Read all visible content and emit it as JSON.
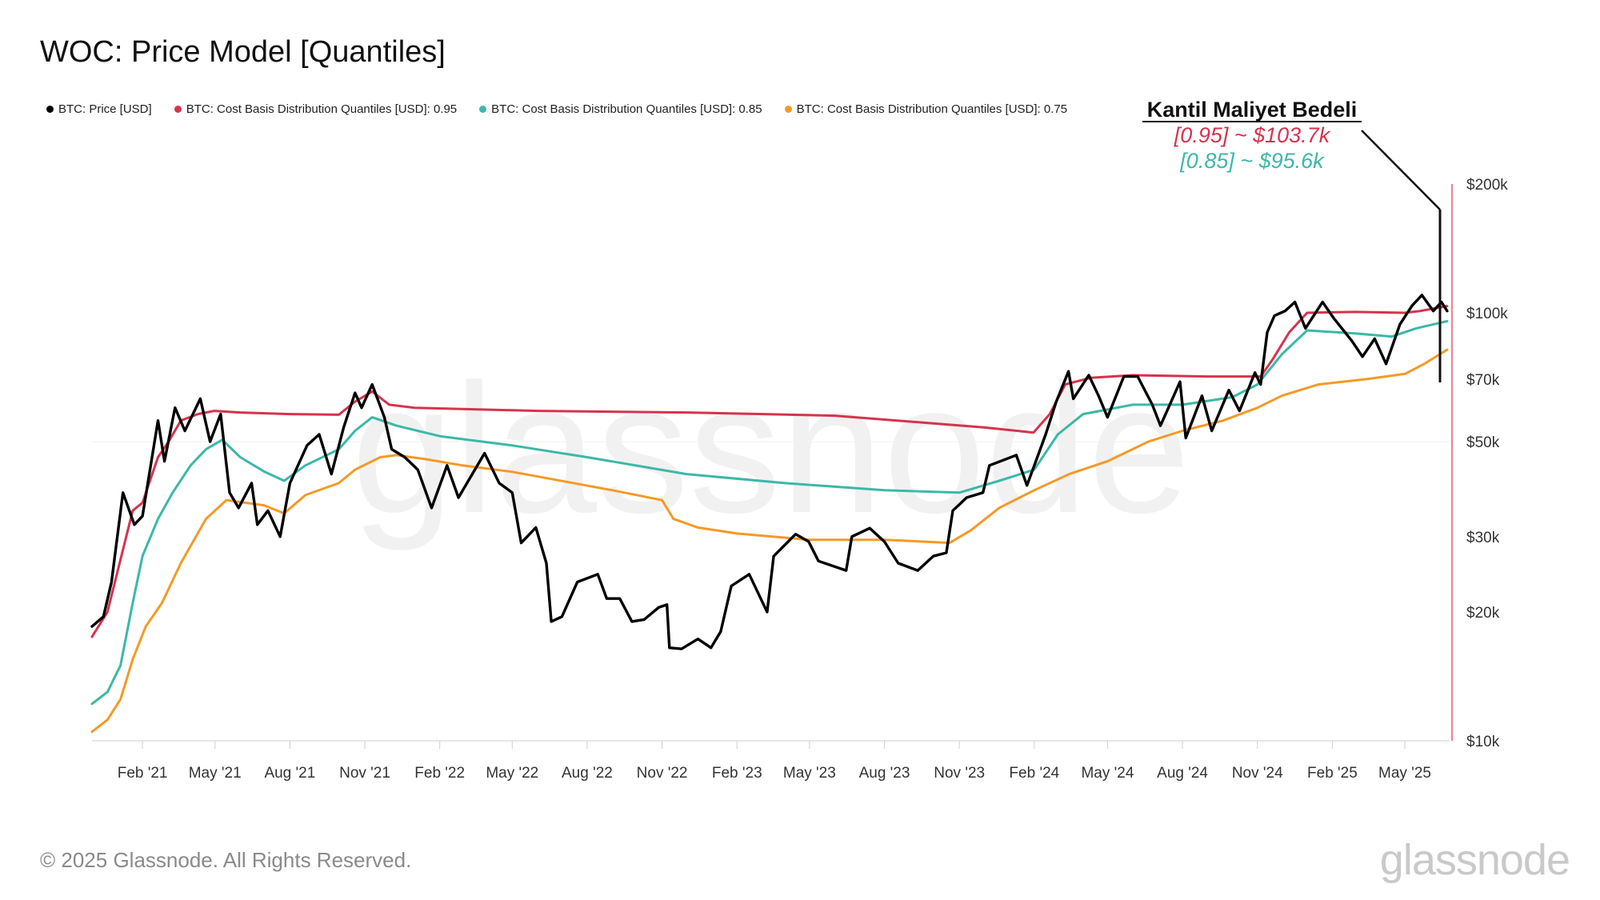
{
  "title": "WOC: Price Model [Quantiles]",
  "legend": [
    {
      "label": "BTC: Price [USD]",
      "color": "#000000"
    },
    {
      "label": "BTC: Cost Basis Distribution Quantiles [USD]: 0.95",
      "color": "#d6334d"
    },
    {
      "label": "BTC: Cost Basis Distribution Quantiles [USD]: 0.85",
      "color": "#3cb8a8"
    },
    {
      "label": "BTC: Cost Basis Distribution Quantiles [USD]: 0.75",
      "color": "#f39a26"
    }
  ],
  "annotation": {
    "heading": "Kantil Maliyet Bedeli",
    "line1": "[0.95] ~ $103.7k",
    "line2": "[0.85] ~ $95.6k",
    "line1_color": "#d6334d",
    "line2_color": "#3cb8a8"
  },
  "footer": "© 2025 Glassnode. All Rights Reserved.",
  "watermark": "glassnode",
  "chart_data": {
    "type": "line",
    "y_scale": "log",
    "ylim": [
      10000,
      200000
    ],
    "xlim": [
      "2020-12-01",
      "2025-06-25"
    ],
    "y_ticks": [
      {
        "value": 10000,
        "label": "$10k"
      },
      {
        "value": 20000,
        "label": "$20k"
      },
      {
        "value": 30000,
        "label": "$30k"
      },
      {
        "value": 50000,
        "label": "$50k"
      },
      {
        "value": 70000,
        "label": "$70k"
      },
      {
        "value": 100000,
        "label": "$100k"
      },
      {
        "value": 200000,
        "label": "$200k"
      }
    ],
    "x_ticks": [
      {
        "date": "2021-02-01",
        "label": "Feb '21"
      },
      {
        "date": "2021-05-01",
        "label": "May '21"
      },
      {
        "date": "2021-08-01",
        "label": "Aug '21"
      },
      {
        "date": "2021-11-01",
        "label": "Nov '21"
      },
      {
        "date": "2022-02-01",
        "label": "Feb '22"
      },
      {
        "date": "2022-05-01",
        "label": "May '22"
      },
      {
        "date": "2022-08-01",
        "label": "Aug '22"
      },
      {
        "date": "2022-11-01",
        "label": "Nov '22"
      },
      {
        "date": "2023-02-01",
        "label": "Feb '23"
      },
      {
        "date": "2023-05-01",
        "label": "May '23"
      },
      {
        "date": "2023-08-01",
        "label": "Aug '23"
      },
      {
        "date": "2023-11-01",
        "label": "Nov '23"
      },
      {
        "date": "2024-02-01",
        "label": "Feb '24"
      },
      {
        "date": "2024-05-01",
        "label": "May '24"
      },
      {
        "date": "2024-08-01",
        "label": "Aug '24"
      },
      {
        "date": "2024-11-01",
        "label": "Nov '24"
      },
      {
        "date": "2025-02-01",
        "label": "Feb '25"
      },
      {
        "date": "2025-05-01",
        "label": "May '25"
      }
    ],
    "series": [
      {
        "name": "BTC: Price [USD]",
        "color": "#000000",
        "points": [
          [
            "2020-12-01",
            18500
          ],
          [
            "2020-12-15",
            19500
          ],
          [
            "2020-12-25",
            23500
          ],
          [
            "2021-01-08",
            38000
          ],
          [
            "2021-01-22",
            32000
          ],
          [
            "2021-02-01",
            33500
          ],
          [
            "2021-02-20",
            56000
          ],
          [
            "2021-02-28",
            45000
          ],
          [
            "2021-03-13",
            60000
          ],
          [
            "2021-03-25",
            53000
          ],
          [
            "2021-04-13",
            63000
          ],
          [
            "2021-04-25",
            50000
          ],
          [
            "2021-05-08",
            58000
          ],
          [
            "2021-05-19",
            38000
          ],
          [
            "2021-05-30",
            35000
          ],
          [
            "2021-06-15",
            40000
          ],
          [
            "2021-06-22",
            32000
          ],
          [
            "2021-07-05",
            34500
          ],
          [
            "2021-07-20",
            30000
          ],
          [
            "2021-08-01",
            40000
          ],
          [
            "2021-08-22",
            49000
          ],
          [
            "2021-09-06",
            52000
          ],
          [
            "2021-09-21",
            42000
          ],
          [
            "2021-10-06",
            54000
          ],
          [
            "2021-10-20",
            65000
          ],
          [
            "2021-10-28",
            60000
          ],
          [
            "2021-11-10",
            68000
          ],
          [
            "2021-11-25",
            57000
          ],
          [
            "2021-12-04",
            48000
          ],
          [
            "2021-12-20",
            46000
          ],
          [
            "2022-01-05",
            43000
          ],
          [
            "2022-01-22",
            35000
          ],
          [
            "2022-02-10",
            44000
          ],
          [
            "2022-02-24",
            37000
          ],
          [
            "2022-03-28",
            47000
          ],
          [
            "2022-04-15",
            40000
          ],
          [
            "2022-05-01",
            38000
          ],
          [
            "2022-05-12",
            29000
          ],
          [
            "2022-05-30",
            31500
          ],
          [
            "2022-06-12",
            26000
          ],
          [
            "2022-06-18",
            19000
          ],
          [
            "2022-07-01",
            19500
          ],
          [
            "2022-07-20",
            23500
          ],
          [
            "2022-08-14",
            24500
          ],
          [
            "2022-08-25",
            21500
          ],
          [
            "2022-09-10",
            21500
          ],
          [
            "2022-09-25",
            19000
          ],
          [
            "2022-10-10",
            19200
          ],
          [
            "2022-10-28",
            20500
          ],
          [
            "2022-11-07",
            20800
          ],
          [
            "2022-11-10",
            16500
          ],
          [
            "2022-11-25",
            16400
          ],
          [
            "2022-12-15",
            17300
          ],
          [
            "2022-12-31",
            16500
          ],
          [
            "2023-01-12",
            18000
          ],
          [
            "2023-01-25",
            23000
          ],
          [
            "2023-02-16",
            24500
          ],
          [
            "2023-03-10",
            20000
          ],
          [
            "2023-03-18",
            27000
          ],
          [
            "2023-04-14",
            30400
          ],
          [
            "2023-04-30",
            29200
          ],
          [
            "2023-05-12",
            26300
          ],
          [
            "2023-06-15",
            25000
          ],
          [
            "2023-06-22",
            30000
          ],
          [
            "2023-07-14",
            31400
          ],
          [
            "2023-08-01",
            29200
          ],
          [
            "2023-08-18",
            26000
          ],
          [
            "2023-09-11",
            25000
          ],
          [
            "2023-09-30",
            27000
          ],
          [
            "2023-10-16",
            27500
          ],
          [
            "2023-10-24",
            34500
          ],
          [
            "2023-11-10",
            37000
          ],
          [
            "2023-11-30",
            38000
          ],
          [
            "2023-12-08",
            44000
          ],
          [
            "2024-01-10",
            46500
          ],
          [
            "2024-01-23",
            39500
          ],
          [
            "2024-02-15",
            52000
          ],
          [
            "2024-02-28",
            62000
          ],
          [
            "2024-03-14",
            73000
          ],
          [
            "2024-03-20",
            63000
          ],
          [
            "2024-04-08",
            71500
          ],
          [
            "2024-04-20",
            64000
          ],
          [
            "2024-05-01",
            57000
          ],
          [
            "2024-05-21",
            71000
          ],
          [
            "2024-06-07",
            71000
          ],
          [
            "2024-06-25",
            61000
          ],
          [
            "2024-07-05",
            54500
          ],
          [
            "2024-07-29",
            69000
          ],
          [
            "2024-08-05",
            51000
          ],
          [
            "2024-08-25",
            64000
          ],
          [
            "2024-09-06",
            53000
          ],
          [
            "2024-09-27",
            66000
          ],
          [
            "2024-10-10",
            59000
          ],
          [
            "2024-10-29",
            72500
          ],
          [
            "2024-11-05",
            68000
          ],
          [
            "2024-11-13",
            90000
          ],
          [
            "2024-11-22",
            98500
          ],
          [
            "2024-12-05",
            101000
          ],
          [
            "2024-12-17",
            106000
          ],
          [
            "2024-12-30",
            92000
          ],
          [
            "2025-01-20",
            106000
          ],
          [
            "2025-02-03",
            97000
          ],
          [
            "2025-02-25",
            86000
          ],
          [
            "2025-03-10",
            79000
          ],
          [
            "2025-03-25",
            87000
          ],
          [
            "2025-04-08",
            76000
          ],
          [
            "2025-04-25",
            94000
          ],
          [
            "2025-05-10",
            104000
          ],
          [
            "2025-05-22",
            110000
          ],
          [
            "2025-06-05",
            101000
          ],
          [
            "2025-06-15",
            106000
          ],
          [
            "2025-06-22",
            101000
          ]
        ]
      },
      {
        "name": "BTC: Cost Basis Distribution Quantiles [USD]: 0.95",
        "color": "#d6334d",
        "points": [
          [
            "2020-12-01",
            17500
          ],
          [
            "2020-12-20",
            20000
          ],
          [
            "2021-01-05",
            26500
          ],
          [
            "2021-01-20",
            34500
          ],
          [
            "2021-02-01",
            36000
          ],
          [
            "2021-02-20",
            46000
          ],
          [
            "2021-03-05",
            50000
          ],
          [
            "2021-03-20",
            56000
          ],
          [
            "2021-04-10",
            58000
          ],
          [
            "2021-04-30",
            59000
          ],
          [
            "2021-06-01",
            58500
          ],
          [
            "2021-08-01",
            58000
          ],
          [
            "2021-09-30",
            57800
          ],
          [
            "2021-10-20",
            62000
          ],
          [
            "2021-11-10",
            65500
          ],
          [
            "2021-12-01",
            61000
          ],
          [
            "2022-01-01",
            60000
          ],
          [
            "2022-06-01",
            59000
          ],
          [
            "2022-12-01",
            58500
          ],
          [
            "2023-06-01",
            57500
          ],
          [
            "2023-12-01",
            54000
          ],
          [
            "2024-01-31",
            52500
          ],
          [
            "2024-02-20",
            58000
          ],
          [
            "2024-03-10",
            68000
          ],
          [
            "2024-04-10",
            70500
          ],
          [
            "2024-06-01",
            71500
          ],
          [
            "2024-09-01",
            71000
          ],
          [
            "2024-11-05",
            71000
          ],
          [
            "2024-11-20",
            78000
          ],
          [
            "2024-12-10",
            90000
          ],
          [
            "2025-01-01",
            100000
          ],
          [
            "2025-03-01",
            100500
          ],
          [
            "2025-05-01",
            100000
          ],
          [
            "2025-05-20",
            101000
          ],
          [
            "2025-06-22",
            103700
          ]
        ]
      },
      {
        "name": "BTC: Cost Basis Distribution Quantiles [USD]: 0.85",
        "color": "#3cb8a8",
        "points": [
          [
            "2020-12-01",
            12200
          ],
          [
            "2020-12-20",
            13000
          ],
          [
            "2021-01-05",
            15000
          ],
          [
            "2021-01-20",
            21000
          ],
          [
            "2021-02-01",
            27000
          ],
          [
            "2021-02-20",
            33000
          ],
          [
            "2021-03-10",
            38000
          ],
          [
            "2021-04-01",
            44000
          ],
          [
            "2021-04-20",
            48000
          ],
          [
            "2021-05-10",
            50500
          ],
          [
            "2021-06-01",
            46000
          ],
          [
            "2021-07-01",
            42500
          ],
          [
            "2021-07-25",
            40500
          ],
          [
            "2021-08-20",
            44000
          ],
          [
            "2021-09-30",
            48000
          ],
          [
            "2021-10-20",
            53000
          ],
          [
            "2021-11-10",
            57000
          ],
          [
            "2021-12-10",
            54500
          ],
          [
            "2022-02-01",
            51500
          ],
          [
            "2022-05-01",
            49000
          ],
          [
            "2022-08-01",
            46000
          ],
          [
            "2022-12-01",
            42000
          ],
          [
            "2023-04-01",
            40000
          ],
          [
            "2023-08-01",
            38500
          ],
          [
            "2023-11-01",
            38000
          ],
          [
            "2023-12-20",
            40500
          ],
          [
            "2024-02-01",
            43000
          ],
          [
            "2024-03-01",
            52000
          ],
          [
            "2024-04-01",
            58000
          ],
          [
            "2024-06-01",
            61000
          ],
          [
            "2024-08-01",
            61000
          ],
          [
            "2024-10-01",
            63500
          ],
          [
            "2024-11-01",
            68000
          ],
          [
            "2024-12-01",
            80000
          ],
          [
            "2025-01-01",
            91000
          ],
          [
            "2025-03-01",
            89500
          ],
          [
            "2025-04-15",
            88000
          ],
          [
            "2025-05-15",
            92000
          ],
          [
            "2025-06-22",
            95600
          ]
        ]
      },
      {
        "name": "BTC: Cost Basis Distribution Quantiles [USD]: 0.75",
        "color": "#f39a26",
        "points": [
          [
            "2020-12-01",
            10500
          ],
          [
            "2020-12-20",
            11200
          ],
          [
            "2021-01-05",
            12500
          ],
          [
            "2021-01-20",
            15500
          ],
          [
            "2021-02-05",
            18500
          ],
          [
            "2021-02-25",
            21000
          ],
          [
            "2021-03-20",
            26000
          ],
          [
            "2021-04-20",
            33000
          ],
          [
            "2021-05-15",
            36500
          ],
          [
            "2021-06-30",
            35500
          ],
          [
            "2021-07-25",
            34000
          ],
          [
            "2021-08-20",
            37500
          ],
          [
            "2021-09-30",
            40000
          ],
          [
            "2021-10-20",
            43000
          ],
          [
            "2021-11-20",
            46000
          ],
          [
            "2021-12-10",
            46500
          ],
          [
            "2022-01-15",
            45500
          ],
          [
            "2022-03-01",
            44000
          ],
          [
            "2022-05-01",
            42500
          ],
          [
            "2022-06-15",
            41000
          ],
          [
            "2022-09-01",
            38500
          ],
          [
            "2022-11-01",
            36500
          ],
          [
            "2022-11-15",
            33000
          ],
          [
            "2022-12-15",
            31500
          ],
          [
            "2023-02-01",
            30500
          ],
          [
            "2023-05-01",
            29500
          ],
          [
            "2023-08-01",
            29500
          ],
          [
            "2023-10-20",
            29000
          ],
          [
            "2023-11-15",
            31000
          ],
          [
            "2023-12-20",
            35000
          ],
          [
            "2024-02-01",
            38500
          ],
          [
            "2024-03-15",
            42000
          ],
          [
            "2024-05-01",
            45000
          ],
          [
            "2024-06-20",
            50000
          ],
          [
            "2024-08-01",
            53000
          ],
          [
            "2024-09-20",
            56000
          ],
          [
            "2024-11-01",
            60000
          ],
          [
            "2024-12-01",
            64000
          ],
          [
            "2025-01-15",
            68000
          ],
          [
            "2025-03-15",
            70000
          ],
          [
            "2025-05-01",
            72000
          ],
          [
            "2025-05-25",
            76000
          ],
          [
            "2025-06-22",
            82000
          ]
        ]
      }
    ]
  }
}
